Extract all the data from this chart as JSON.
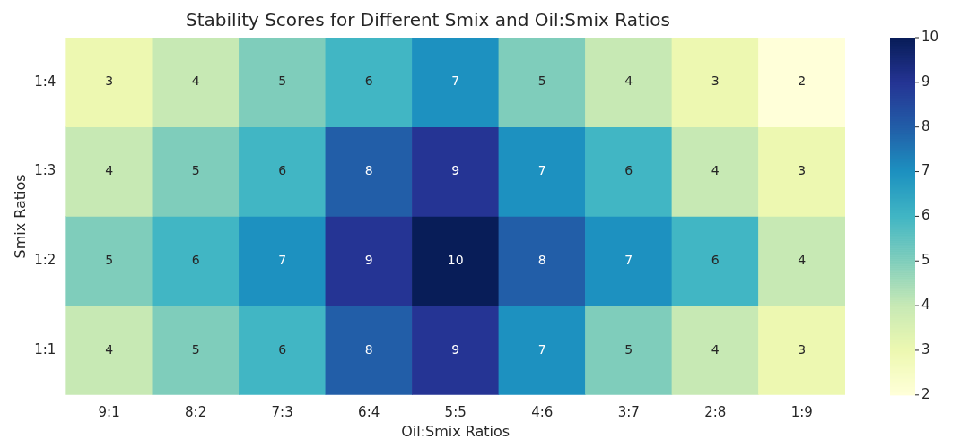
{
  "chart_data": {
    "type": "heatmap",
    "title": "Stability Scores for Different Smix and Oil:Smix Ratios",
    "xlabel": "Oil:Smix Ratios",
    "ylabel": "Smix Ratios",
    "categories": [
      "9:1",
      "8:2",
      "7:3",
      "6:4",
      "5:5",
      "4:6",
      "3:7",
      "2:8",
      "1:9"
    ],
    "y_categories": [
      "1:4",
      "1:3",
      "1:2",
      "1:1"
    ],
    "cells": [
      [
        3,
        4,
        5,
        6,
        7,
        5,
        4,
        3,
        2
      ],
      [
        4,
        5,
        6,
        8,
        9,
        7,
        6,
        4,
        3
      ],
      [
        5,
        6,
        7,
        9,
        10,
        8,
        7,
        6,
        4
      ],
      [
        4,
        5,
        6,
        8,
        9,
        7,
        5,
        4,
        3
      ]
    ],
    "clim": [
      2,
      10
    ],
    "cticks": [
      2,
      3,
      4,
      5,
      6,
      7,
      8,
      9,
      10
    ],
    "data_labels": true,
    "grid": false
  }
}
